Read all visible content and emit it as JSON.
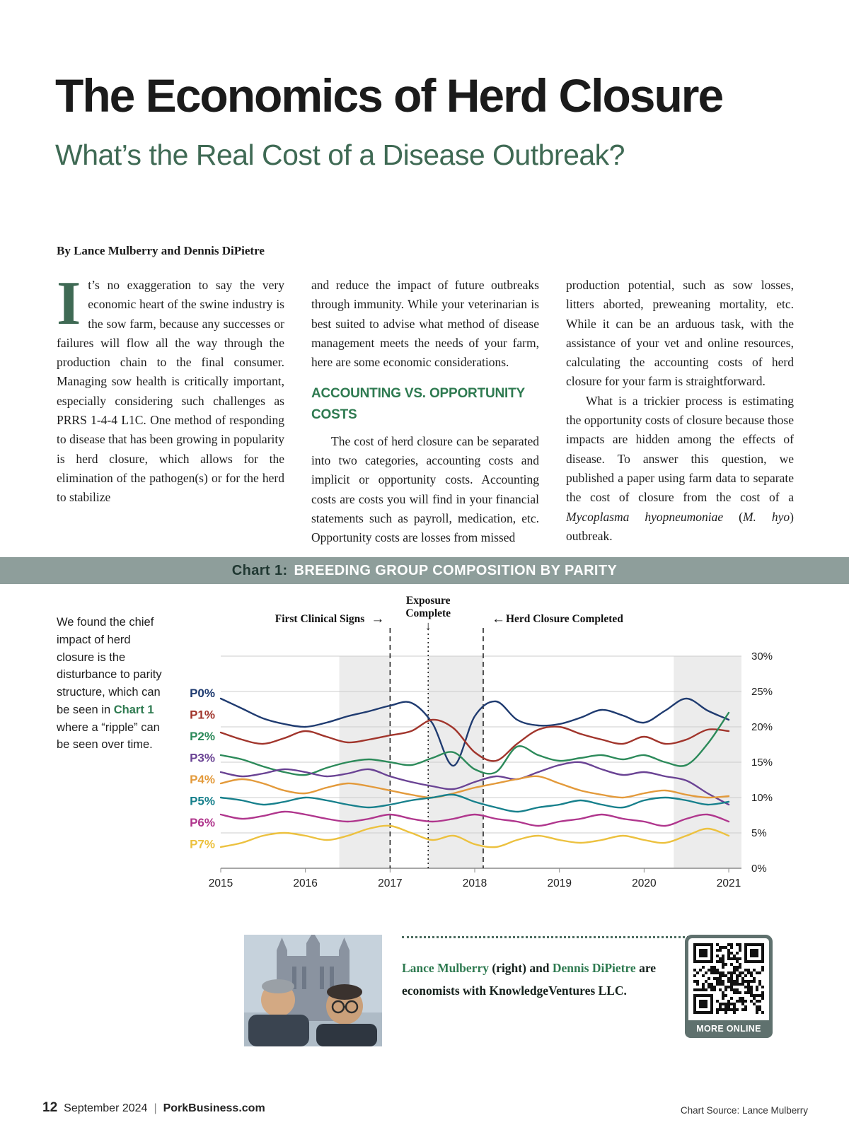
{
  "colors": {
    "accent_green": "#3f6a54",
    "heading_green": "#2e7a50",
    "header_bar": "#8e9e9b",
    "qr_frame": "#5f716e",
    "title_color": "#1b1b1b"
  },
  "header": {
    "title": "The Economics of Herd Closure",
    "subtitle": "What’s the Real Cost of a Disease Outbreak?"
  },
  "article": {
    "byline": "By Lance Mulberry and Dennis DiPietre",
    "dropcap": "I",
    "col1": "t’s no exaggeration to say the very economic heart of the swine industry is the sow farm, because any successes or failures will flow all the way through the production chain to the final consumer. Managing sow health is critically important, especially considering such challenges as PRRS 1-4-4 L1C. One method of responding to disease that has been growing in popularity is herd closure, which allows for the elimination of the pathogen(s) or for the herd to stabilize",
    "col2_p1": "and reduce the impact of future outbreaks through immunity. While your veterinarian is best suited to advise what method of disease management meets the needs of your farm, here are some economic considerations.",
    "section_heading": "ACCOUNTING VS. OPPORTUNITY COSTS",
    "col2_p2": "The cost of herd closure can be separated into two categories, accounting costs and implicit or opportunity costs. Accounting costs are costs you will find in your financial statements such as payroll, medication, etc. Opportunity costs are losses from missed",
    "col3_p1": "production potential, such as sow losses, litters aborted, preweaning mortality, etc. While it can be an arduous task, with the assistance of your vet and online resources, calculating the accounting costs of herd closure for your farm is straightforward.",
    "col3_p2a": "What is a trickier process is estimating the opportunity costs of closure because those impacts are hidden among the effects of disease. To answer this question, we published a paper using farm data to separate the cost of closure from the cost of a ",
    "col3_p2_it1": "Mycoplasma hyopneumoniae",
    "col3_p2b": " (",
    "col3_p2_it2": "M. hyo",
    "col3_p2c": ") outbreak."
  },
  "chart_section": {
    "header_prefix": "Chart 1:",
    "header_title": "BREEDING GROUP COMPOSITION BY PARITY",
    "sidebar": {
      "a": "We found the chief impact of herd closure is the disturbance to parity structure, which can be seen in ",
      "link": "Chart 1",
      "b": " where a “ripple” can be seen over time."
    }
  },
  "chart_data": {
    "type": "line",
    "title": "Breeding Group Composition by Parity",
    "x_start": 2015,
    "x_step": 0.25,
    "xlim": [
      2015,
      2021.15
    ],
    "ylim": [
      0,
      30
    ],
    "x_ticks": [
      2015,
      2016,
      2017,
      2018,
      2019,
      2020,
      2021
    ],
    "y_ticks": [
      0,
      5,
      10,
      15,
      20,
      25,
      30
    ],
    "y_tick_suffix": "%",
    "grid": true,
    "legend_position": "left",
    "bands": [
      [
        2016.4,
        2017.0
      ],
      [
        2017.45,
        2018.1
      ],
      [
        2020.35,
        2021.15
      ]
    ],
    "event_lines": [
      {
        "label": "First Clinical Signs",
        "x": 2017.0,
        "style": "dashed"
      },
      {
        "label": "Exposure Complete",
        "x": 2017.45,
        "style": "dotted"
      },
      {
        "label": "Herd Closure Completed",
        "x": 2018.1,
        "style": "dashed"
      }
    ],
    "series": [
      {
        "name": "P0%",
        "color": "#1f3b70",
        "values": [
          24.0,
          22.6,
          21.2,
          20.4,
          20.0,
          20.6,
          21.5,
          22.2,
          23.0,
          23.4,
          20.5,
          14.5,
          21.5,
          23.6,
          21.0,
          20.2,
          20.4,
          21.3,
          22.4,
          21.6,
          20.6,
          22.3,
          24.0,
          22.3,
          21.0
        ]
      },
      {
        "name": "P1%",
        "color": "#a1352c",
        "values": [
          19.2,
          18.2,
          17.6,
          18.4,
          19.4,
          18.6,
          17.8,
          18.2,
          18.8,
          19.4,
          21.0,
          19.8,
          16.4,
          15.2,
          17.6,
          19.6,
          20.0,
          19.0,
          18.2,
          17.6,
          18.6,
          17.6,
          18.2,
          19.6,
          19.4
        ]
      },
      {
        "name": "P2%",
        "color": "#2c8a5a",
        "values": [
          16.0,
          15.4,
          14.4,
          13.6,
          13.2,
          14.2,
          15.0,
          15.4,
          15.0,
          14.6,
          15.6,
          16.4,
          14.0,
          13.6,
          17.2,
          16.0,
          15.2,
          15.6,
          16.0,
          15.4,
          16.0,
          15.0,
          14.6,
          17.6,
          22.0
        ]
      },
      {
        "name": "P3%",
        "color": "#6a4394",
        "values": [
          13.6,
          13.0,
          13.4,
          14.0,
          13.6,
          13.0,
          13.4,
          14.0,
          13.0,
          12.2,
          11.6,
          11.2,
          12.2,
          13.0,
          12.6,
          13.6,
          14.6,
          15.0,
          14.0,
          13.2,
          13.6,
          13.0,
          12.4,
          10.6,
          9.0
        ]
      },
      {
        "name": "P4%",
        "color": "#e39a3b",
        "values": [
          12.0,
          12.6,
          12.0,
          11.0,
          10.6,
          11.4,
          12.0,
          11.6,
          11.0,
          10.4,
          10.0,
          10.6,
          11.4,
          12.0,
          12.6,
          13.0,
          12.0,
          11.0,
          10.4,
          10.0,
          10.6,
          11.0,
          10.4,
          10.0,
          10.2
        ]
      },
      {
        "name": "P5%",
        "color": "#17808c",
        "values": [
          10.0,
          9.6,
          9.0,
          9.4,
          10.0,
          9.6,
          9.0,
          8.6,
          9.0,
          9.6,
          10.0,
          10.4,
          9.4,
          8.6,
          8.0,
          8.6,
          9.0,
          9.6,
          9.0,
          8.6,
          9.6,
          10.0,
          9.6,
          9.0,
          9.4
        ]
      },
      {
        "name": "P6%",
        "color": "#b0368d",
        "values": [
          7.6,
          7.0,
          7.4,
          8.0,
          7.6,
          7.0,
          6.6,
          7.0,
          7.6,
          7.0,
          6.6,
          7.0,
          7.6,
          7.0,
          6.6,
          6.0,
          6.6,
          7.0,
          7.6,
          7.0,
          6.6,
          6.0,
          7.0,
          7.6,
          6.6
        ]
      },
      {
        "name": "P7%",
        "color": "#ecc13f",
        "values": [
          3.0,
          3.6,
          4.6,
          5.0,
          4.6,
          4.0,
          4.6,
          5.6,
          6.0,
          5.0,
          4.0,
          4.6,
          3.4,
          3.0,
          4.0,
          4.6,
          4.0,
          3.6,
          4.0,
          4.6,
          4.0,
          3.6,
          4.6,
          5.6,
          4.6
        ]
      }
    ]
  },
  "authors_caption": {
    "name1": "Lance Mulberry",
    "mid1": " (right) and ",
    "name2": "Dennis DiPietre",
    "mid2": " are economists with KnowledgeVentures LLC."
  },
  "more_online": {
    "label": "MORE ONLINE"
  },
  "footer": {
    "page_number": "12",
    "issue": "September 2024",
    "separator": "|",
    "site": "PorkBusiness.com",
    "chart_source": "Chart Source: Lance Mulberry"
  }
}
